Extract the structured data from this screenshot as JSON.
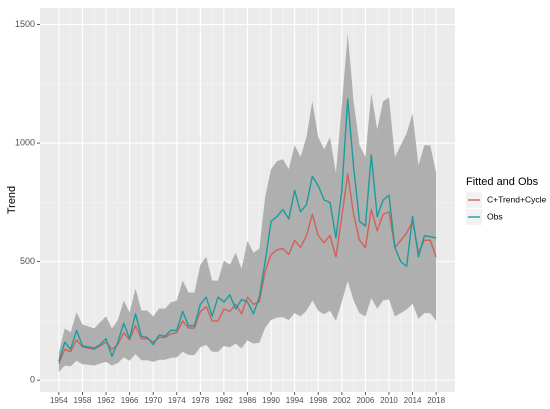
{
  "chart_data": {
    "type": "line",
    "y_label": "Trend",
    "legend_title": "Fitted and Obs",
    "x": [
      1954,
      1955,
      1956,
      1957,
      1958,
      1959,
      1960,
      1961,
      1962,
      1963,
      1964,
      1965,
      1966,
      1967,
      1968,
      1969,
      1970,
      1971,
      1972,
      1973,
      1974,
      1975,
      1976,
      1977,
      1978,
      1979,
      1980,
      1981,
      1982,
      1983,
      1984,
      1985,
      1986,
      1987,
      1988,
      1989,
      1990,
      1991,
      1992,
      1993,
      1994,
      1995,
      1996,
      1997,
      1998,
      1999,
      2000,
      2001,
      2002,
      2003,
      2004,
      2005,
      2006,
      2007,
      2008,
      2009,
      2010,
      2011,
      2012,
      2013,
      2014,
      2015,
      2016,
      2017,
      2018
    ],
    "series": [
      {
        "name": "C+Trend+Cycle",
        "color": "#d0625a",
        "values": [
          70,
          130,
          120,
          170,
          140,
          135,
          130,
          145,
          160,
          130,
          150,
          200,
          170,
          230,
          175,
          175,
          160,
          180,
          180,
          195,
          200,
          250,
          220,
          220,
          290,
          310,
          250,
          250,
          300,
          290,
          320,
          280,
          350,
          320,
          330,
          460,
          530,
          550,
          555,
          530,
          590,
          560,
          610,
          700,
          610,
          580,
          610,
          520,
          690,
          870,
          700,
          590,
          560,
          720,
          630,
          700,
          710,
          560,
          590,
          620,
          670,
          540,
          590,
          590,
          520
        ]
      },
      {
        "name": "Obs",
        "color": "#1b9c9e",
        "values": [
          80,
          160,
          130,
          210,
          145,
          140,
          135,
          150,
          175,
          100,
          160,
          240,
          175,
          280,
          185,
          180,
          150,
          190,
          185,
          210,
          210,
          290,
          230,
          230,
          320,
          350,
          270,
          350,
          330,
          360,
          300,
          340,
          330,
          280,
          350,
          500,
          670,
          690,
          720,
          680,
          800,
          710,
          740,
          860,
          820,
          760,
          750,
          600,
          800,
          1185,
          900,
          670,
          650,
          950,
          690,
          760,
          780,
          560,
          500,
          480,
          690,
          520,
          610,
          605,
          600
        ]
      }
    ],
    "ribbon": {
      "color": "#a9a9a9",
      "lower": [
        34,
        62,
        58,
        82,
        67,
        65,
        62,
        70,
        77,
        62,
        72,
        96,
        82,
        110,
        84,
        84,
        77,
        86,
        86,
        94,
        96,
        120,
        106,
        106,
        139,
        149,
        120,
        120,
        144,
        139,
        154,
        134,
        168,
        154,
        158,
        221,
        254,
        264,
        266,
        254,
        283,
        269,
        293,
        336,
        293,
        278,
        293,
        250,
        331,
        418,
        336,
        283,
        269,
        346,
        302,
        336,
        341,
        269,
        283,
        298,
        322,
        259,
        283,
        283,
        250
      ],
      "upper": [
        118,
        218,
        202,
        286,
        235,
        227,
        218,
        244,
        269,
        218,
        252,
        336,
        286,
        386,
        294,
        294,
        269,
        302,
        302,
        328,
        336,
        420,
        370,
        370,
        487,
        521,
        420,
        420,
        504,
        487,
        538,
        470,
        588,
        538,
        554,
        773,
        890,
        924,
        932,
        890,
        991,
        941,
        1025,
        1176,
        1025,
        974,
        1025,
        874,
        1159,
        1462,
        1176,
        991,
        941,
        1210,
        1058,
        1176,
        1193,
        941,
        991,
        1042,
        1126,
        907,
        991,
        991,
        874
      ]
    },
    "xlim": [
      1950.8,
      2021.2
    ],
    "ylim": [
      -50,
      1570
    ],
    "xticks": [
      1954,
      1958,
      1962,
      1966,
      1970,
      1974,
      1978,
      1982,
      1986,
      1990,
      1994,
      1998,
      2002,
      2006,
      2010,
      2014,
      2018
    ],
    "yticks": [
      0,
      500,
      1000,
      1500
    ],
    "grid": true
  }
}
